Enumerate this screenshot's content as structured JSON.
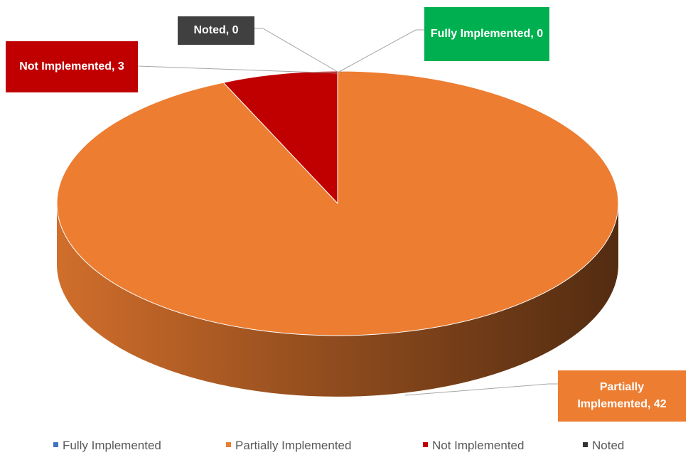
{
  "chart_data": {
    "type": "pie3d",
    "categories": [
      "Fully Implemented",
      "Partially Implemented",
      "Not Implemented",
      "Noted"
    ],
    "values": [
      0,
      42,
      3,
      0
    ],
    "value_labels": [
      "Fully Implemented, 0",
      "Partially Implemented, 42",
      "Not Implemented, 3",
      "Noted, 0"
    ],
    "colors": [
      "#4472c4",
      "#ed7d31",
      "#c00000",
      "#333333"
    ],
    "label_colors": [
      "#00b050",
      "#ed7d31",
      "#c00000",
      "#404040"
    ],
    "legend": "bottom"
  }
}
